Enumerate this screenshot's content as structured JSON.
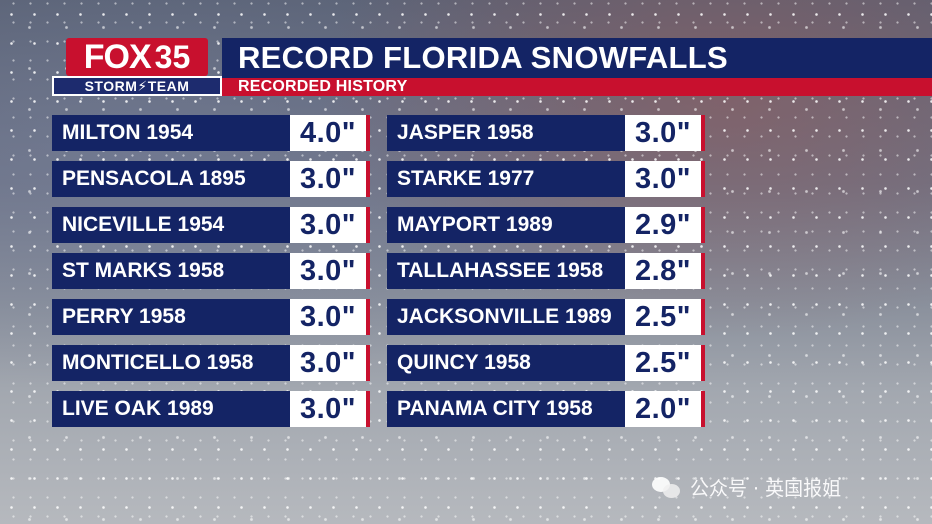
{
  "logo": {
    "brand": "FOX",
    "channel": "35",
    "team": "STORM⚡TEAM"
  },
  "title": "RECORD FLORIDA SNOWFALLS",
  "subtitle": "RECORDED HISTORY",
  "left_column": [
    {
      "place": "MILTON 1954",
      "amount": "4.0\""
    },
    {
      "place": "PENSACOLA 1895",
      "amount": "3.0\""
    },
    {
      "place": "NICEVILLE 1954",
      "amount": "3.0\""
    },
    {
      "place": "ST MARKS 1958",
      "amount": "3.0\""
    },
    {
      "place": "PERRY 1958",
      "amount": "3.0\""
    },
    {
      "place": "MONTICELLO 1958",
      "amount": "3.0\""
    },
    {
      "place": "LIVE OAK 1989",
      "amount": "3.0\""
    }
  ],
  "right_column": [
    {
      "place": "JASPER 1958",
      "amount": "3.0\""
    },
    {
      "place": "STARKE 1977",
      "amount": "3.0\""
    },
    {
      "place": "MAYPORT 1989",
      "amount": "2.9\""
    },
    {
      "place": "TALLAHASSEE 1958",
      "amount": "2.8\""
    },
    {
      "place": "JACKSONVILLE 1989",
      "amount": "2.5\""
    },
    {
      "place": "QUINCY 1958",
      "amount": "2.5\""
    },
    {
      "place": "PANAMA CITY 1958",
      "amount": "2.0\""
    }
  ],
  "watermark": {
    "text": "公众号 · 英国报姐",
    "icon": "wechat-icon"
  },
  "colors": {
    "navy": "#142465",
    "red": "#c8102e",
    "white": "#ffffff"
  }
}
